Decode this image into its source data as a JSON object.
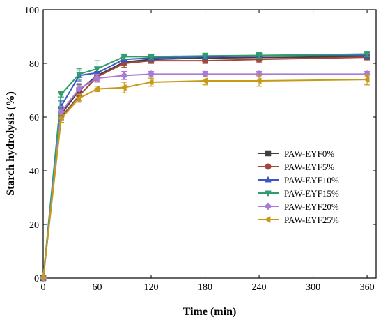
{
  "chart_data": {
    "type": "line",
    "title": "",
    "xlabel": "Time (min)",
    "ylabel": "Starch hydrolysis (%)",
    "xlim": [
      0,
      370
    ],
    "ylim": [
      0,
      100
    ],
    "xticks": [
      0,
      60,
      120,
      180,
      240,
      300,
      360
    ],
    "yticks": [
      0,
      20,
      40,
      60,
      80,
      100
    ],
    "grid": false,
    "legend_position": "center-right",
    "x": [
      0,
      20,
      40,
      60,
      90,
      120,
      180,
      240,
      360
    ],
    "series": [
      {
        "name": "PAW-EYF0%",
        "color": "#404040",
        "marker": "square",
        "values": [
          0,
          61,
          70,
          75.5,
          80.5,
          81.5,
          82,
          82.2,
          82.5
        ],
        "errors": [
          0,
          2,
          2,
          1.5,
          1,
          1,
          1,
          1,
          1
        ]
      },
      {
        "name": "PAW-EYF5%",
        "color": "#a5463a",
        "marker": "circle",
        "values": [
          0,
          60,
          68,
          75,
          80,
          81,
          81,
          81.5,
          82.3
        ],
        "errors": [
          0,
          2,
          2,
          1.5,
          1.5,
          1,
          1,
          1,
          1
        ]
      },
      {
        "name": "PAW-EYF10%",
        "color": "#3d56c4",
        "marker": "triangle-up",
        "values": [
          0,
          64,
          75.5,
          76.5,
          81.5,
          82,
          82.5,
          82.8,
          83
        ],
        "errors": [
          0,
          2,
          2,
          2,
          1,
          1,
          1,
          1,
          1
        ]
      },
      {
        "name": "PAW-EYF15%",
        "color": "#2e9e6c",
        "marker": "triangle-down",
        "values": [
          0,
          68.5,
          76,
          78,
          82.5,
          82.5,
          82.8,
          83,
          83.5
        ],
        "errors": [
          0,
          1,
          2,
          3,
          1,
          1,
          1,
          1,
          1
        ]
      },
      {
        "name": "PAW-EYF20%",
        "color": "#a77bd6",
        "marker": "diamond",
        "values": [
          0,
          62,
          70.5,
          74.5,
          75.5,
          76,
          76,
          76,
          76
        ],
        "errors": [
          0,
          2,
          2,
          1.5,
          1.5,
          1,
          1,
          1,
          1
        ]
      },
      {
        "name": "PAW-EYF25%",
        "color": "#c69a16",
        "marker": "triangle-left",
        "values": [
          0,
          59.5,
          67,
          70.5,
          71,
          73,
          73.5,
          73.5,
          74
        ],
        "errors": [
          0,
          1.5,
          1.5,
          1,
          2,
          1.5,
          1.5,
          2,
          2
        ]
      }
    ]
  }
}
